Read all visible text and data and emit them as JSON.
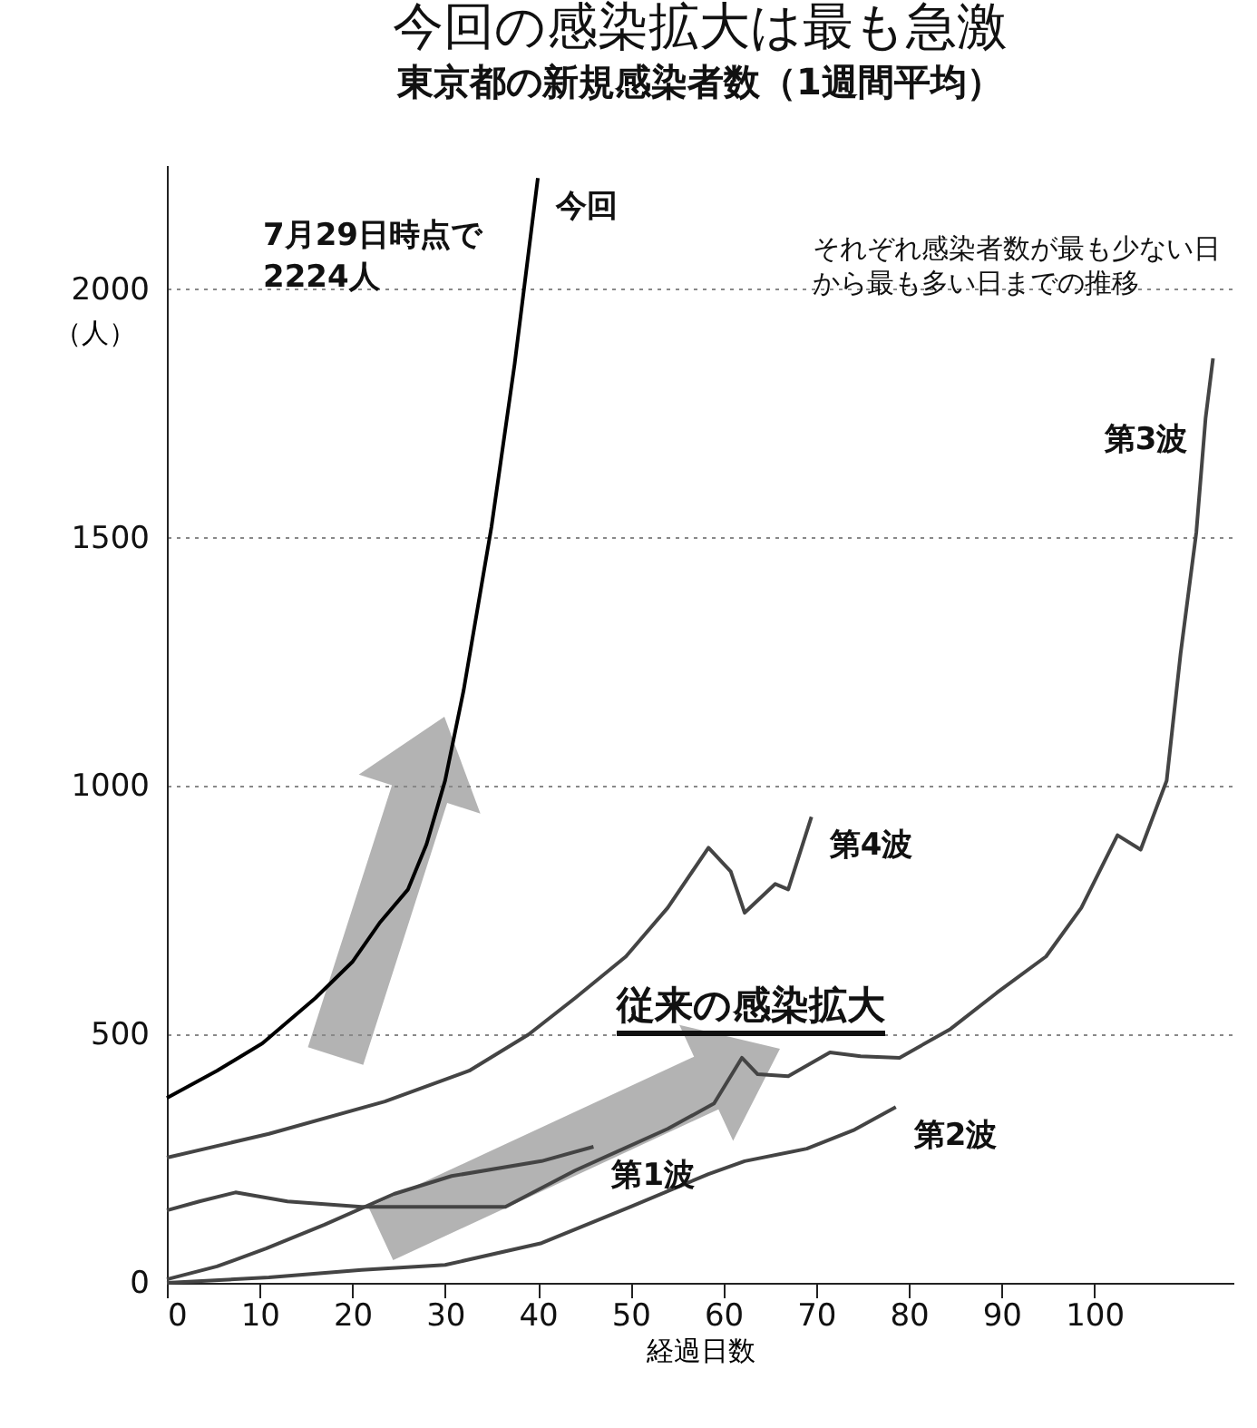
{
  "chart_data": {
    "type": "line",
    "title": "今回の感染拡大は最も急激",
    "subtitle": "東京都の新規感染者数（1週間平均）",
    "xlabel": "経過日数",
    "ylabel": "（人）",
    "xlim": [
      0,
      115
    ],
    "xticks": [
      0,
      10,
      20,
      30,
      40,
      50,
      60,
      70,
      80,
      90,
      100
    ],
    "ylim": [
      0,
      2250
    ],
    "yticks": [
      0,
      500,
      {
        "value": 1000,
        "label": "1000"
      },
      {
        "value": 1500,
        "label": "1500"
      },
      {
        "value": 2000,
        "label": "2000"
      }
    ],
    "grid": "y",
    "legend": false,
    "annotations": [
      "7月29日時点で\n2224人",
      "それぞれ感染者数が最も少ない日から最も多い日までの推移",
      "従来の感染拡大"
    ],
    "series": [
      {
        "name": "今回",
        "color": "#000000",
        "x": [
          0,
          5.4,
          10.3,
          16,
          20,
          23,
          26,
          28,
          30,
          32,
          35,
          37.5,
          40
        ],
        "values": [
          372,
          427,
          482,
          573,
          646,
          726,
          792,
          883,
          1011,
          1193,
          1522,
          1850,
          2224
        ]
      },
      {
        "name": "第1波",
        "color": "#444444",
        "x": [
          0,
          5.4,
          10.7,
          17,
          24.5,
          30.7,
          40.4,
          46
        ],
        "values": [
          7,
          33,
          69,
          117,
          179,
          215,
          245,
          274
        ]
      },
      {
        "name": "第2波",
        "color": "#444444",
        "x": [
          0,
          11,
          21,
          30,
          40.4,
          50,
          58.4,
          62.3,
          69,
          74,
          78.6
        ],
        "values": [
          0,
          11,
          26,
          36,
          80,
          153,
          219,
          245,
          270,
          307,
          354
        ]
      },
      {
        "name": "第3波",
        "color": "#444444",
        "x": [
          0,
          3.5,
          7.4,
          13,
          21,
          28.7,
          36.5,
          44,
          54,
          59,
          62,
          63.7,
          67,
          71.5,
          74.8,
          79,
          84.5,
          89.5,
          94.8,
          98.6,
          102.5,
          105,
          107.8,
          109.3,
          111,
          112,
          112.8
        ],
        "values": [
          146,
          164,
          182,
          164,
          153,
          153,
          153,
          226,
          310,
          361,
          453,
          420,
          416,
          464,
          456,
          453,
          511,
          584,
          657,
          755,
          901,
          872,
          1011,
          1266,
          1511,
          1741,
          1861
        ]
      },
      {
        "name": "第4波",
        "color": "#444444",
        "x": [
          0,
          11,
          23.5,
          32.6,
          39,
          44,
          49.5,
          54,
          58.4,
          60.8,
          62.3,
          65.6,
          67,
          69.5
        ],
        "values": [
          252,
          300,
          365,
          427,
          500,
          573,
          657,
          755,
          876,
          828,
          745,
          803,
          792,
          938
        ]
      }
    ]
  }
}
